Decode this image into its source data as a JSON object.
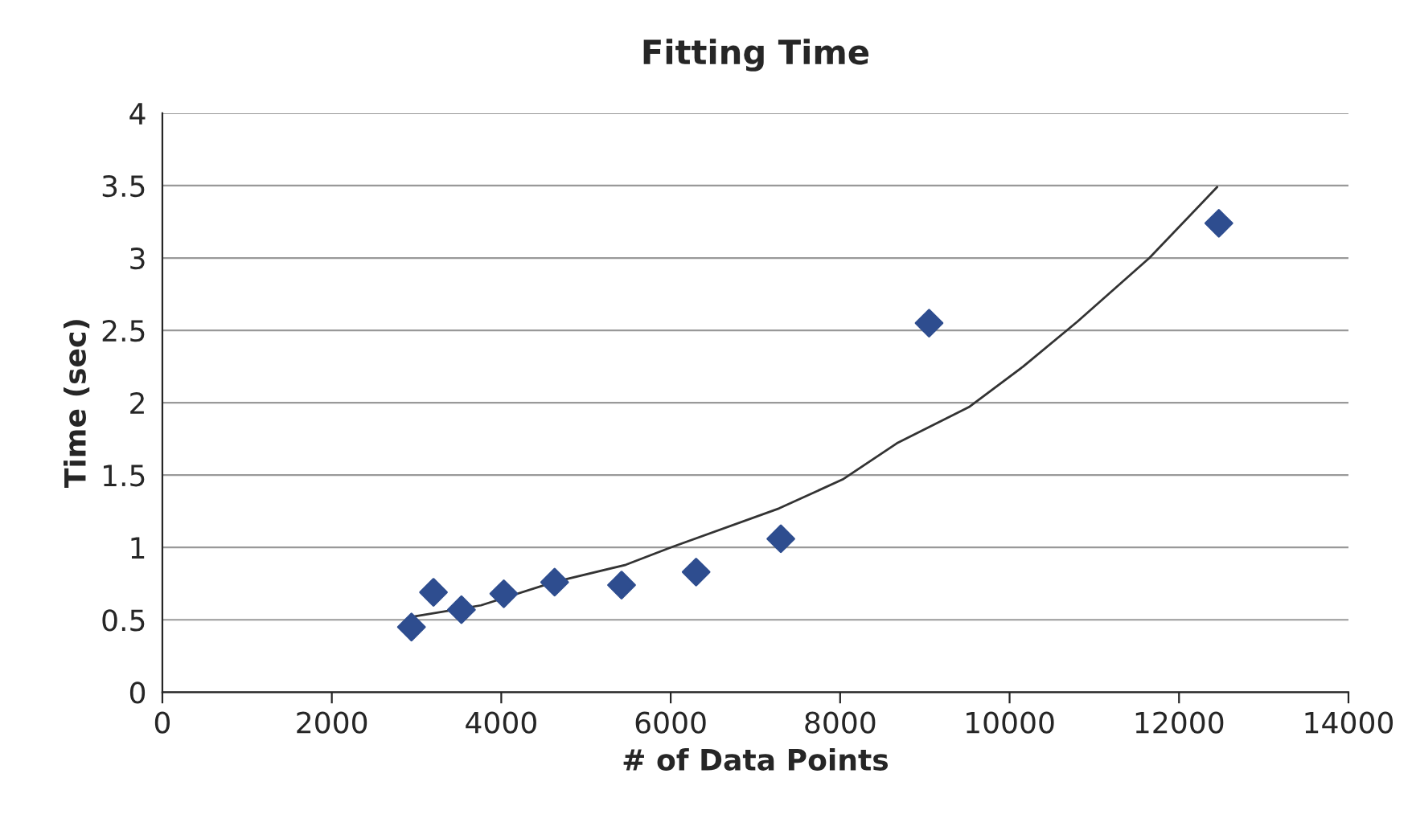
{
  "chart_data": {
    "type": "scatter",
    "title": "Fitting Time",
    "xlabel": "# of Data Points",
    "ylabel": "Time (sec)",
    "xlim": [
      0,
      14000
    ],
    "xticks": [
      0,
      2000,
      4000,
      6000,
      8000,
      10000,
      12000,
      14000
    ],
    "ylim": [
      0,
      4
    ],
    "yticks": [
      0,
      0.5,
      1,
      1.5,
      2,
      2.5,
      3,
      3.5,
      4
    ],
    "grid": "y",
    "marker": "diamond",
    "legend": false,
    "series": [
      {
        "color": "#2e4d8f",
        "x": [
          2940,
          3200,
          3530,
          4030,
          4630,
          5420,
          6300,
          7300,
          9050,
          12470
        ],
        "values": [
          0.45,
          0.69,
          0.57,
          0.68,
          0.76,
          0.74,
          0.83,
          1.06,
          2.55,
          3.24
        ]
      },
      {
        "type": "line",
        "color": "#333333",
        "marker": "none",
        "x": [
          2940,
          3760,
          4620,
          5470,
          6000,
          7280,
          8030,
          8670,
          9520,
          10160,
          10800,
          11650,
          12450
        ],
        "values": [
          0.52,
          0.6,
          0.76,
          0.88,
          1.0,
          1.27,
          1.47,
          1.72,
          1.97,
          2.25,
          2.56,
          3.0,
          3.49
        ]
      }
    ]
  }
}
